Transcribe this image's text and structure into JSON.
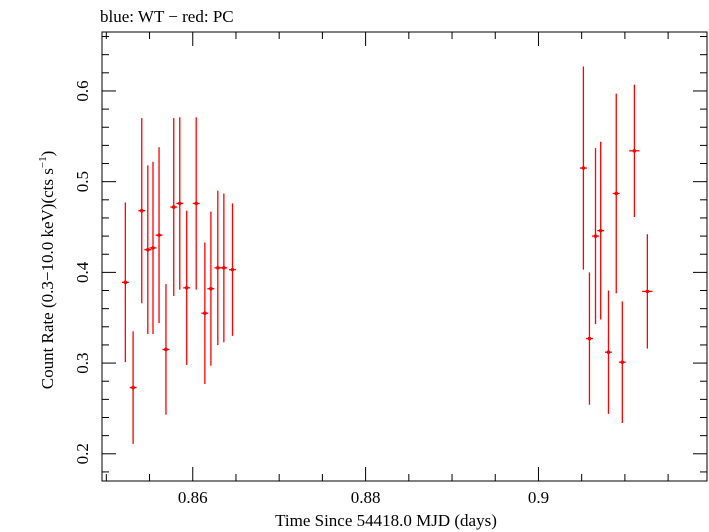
{
  "chart_data": {
    "type": "scatter",
    "title": "blue: WT − red: PC",
    "xlabel": "Time Since 54418.0 MJD (days)",
    "ylabel_main": "Count Rate (0.3−10.0 keV)(cts s",
    "ylabel_sup": "−1",
    "ylabel_close": ")",
    "xlim": [
      0.8495,
      0.9195
    ],
    "ylim": [
      0.17,
      0.665
    ],
    "xticks_major": [
      0.86,
      0.88,
      0.9
    ],
    "xtick_labels": [
      "0.86",
      "0.88",
      "0.9"
    ],
    "yticks_major": [
      0.2,
      0.3,
      0.4,
      0.5,
      0.6
    ],
    "ytick_labels": [
      "0.2",
      "0.3",
      "0.4",
      "0.5",
      "0.6"
    ],
    "series": [
      {
        "color": "#ff0000",
        "points": [
          {
            "x": 0.8522,
            "xerr": 0.0004,
            "y": 0.389,
            "yerr": 0.088
          },
          {
            "x": 0.8531,
            "xerr": 0.0004,
            "y": 0.273,
            "yerr": 0.062
          },
          {
            "x": 0.8541,
            "xerr": 0.0004,
            "y": 0.468,
            "yerr": 0.102
          },
          {
            "x": 0.8548,
            "xerr": 0.0004,
            "y": 0.425,
            "yerr": 0.093
          },
          {
            "x": 0.8554,
            "xerr": 0.0004,
            "y": 0.427,
            "yerr": 0.095
          },
          {
            "x": 0.8561,
            "xerr": 0.0004,
            "y": 0.441,
            "yerr": 0.097
          },
          {
            "x": 0.8569,
            "xerr": 0.0004,
            "y": 0.315,
            "yerr": 0.072
          },
          {
            "x": 0.8578,
            "xerr": 0.0004,
            "y": 0.472,
            "yerr": 0.098
          },
          {
            "x": 0.8585,
            "xerr": 0.0004,
            "y": 0.476,
            "yerr": 0.095
          },
          {
            "x": 0.8593,
            "xerr": 0.0004,
            "y": 0.383,
            "yerr": 0.085
          },
          {
            "x": 0.8604,
            "xerr": 0.0004,
            "y": 0.476,
            "yerr": 0.095
          },
          {
            "x": 0.8614,
            "xerr": 0.0004,
            "y": 0.355,
            "yerr": 0.078
          },
          {
            "x": 0.8621,
            "xerr": 0.0004,
            "y": 0.382,
            "yerr": 0.085
          },
          {
            "x": 0.8629,
            "xerr": 0.0004,
            "y": 0.405,
            "yerr": 0.085
          },
          {
            "x": 0.8636,
            "xerr": 0.0004,
            "y": 0.405,
            "yerr": 0.082
          },
          {
            "x": 0.8646,
            "xerr": 0.0004,
            "y": 0.403,
            "yerr": 0.073
          },
          {
            "x": 0.9052,
            "xerr": 0.0004,
            "y": 0.515,
            "yerr": 0.112
          },
          {
            "x": 0.9059,
            "xerr": 0.0004,
            "y": 0.327,
            "yerr": 0.073
          },
          {
            "x": 0.9066,
            "xerr": 0.0004,
            "y": 0.44,
            "yerr": 0.097
          },
          {
            "x": 0.9072,
            "xerr": 0.0004,
            "y": 0.446,
            "yerr": 0.098
          },
          {
            "x": 0.9081,
            "xerr": 0.0004,
            "y": 0.312,
            "yerr": 0.068
          },
          {
            "x": 0.909,
            "xerr": 0.0004,
            "y": 0.487,
            "yerr": 0.11
          },
          {
            "x": 0.9097,
            "xerr": 0.0004,
            "y": 0.301,
            "yerr": 0.067
          },
          {
            "x": 0.9111,
            "xerr": 0.0006,
            "y": 0.534,
            "yerr": 0.073
          },
          {
            "x": 0.9126,
            "xerr": 0.0006,
            "y": 0.379,
            "yerr": 0.063
          }
        ]
      }
    ]
  }
}
